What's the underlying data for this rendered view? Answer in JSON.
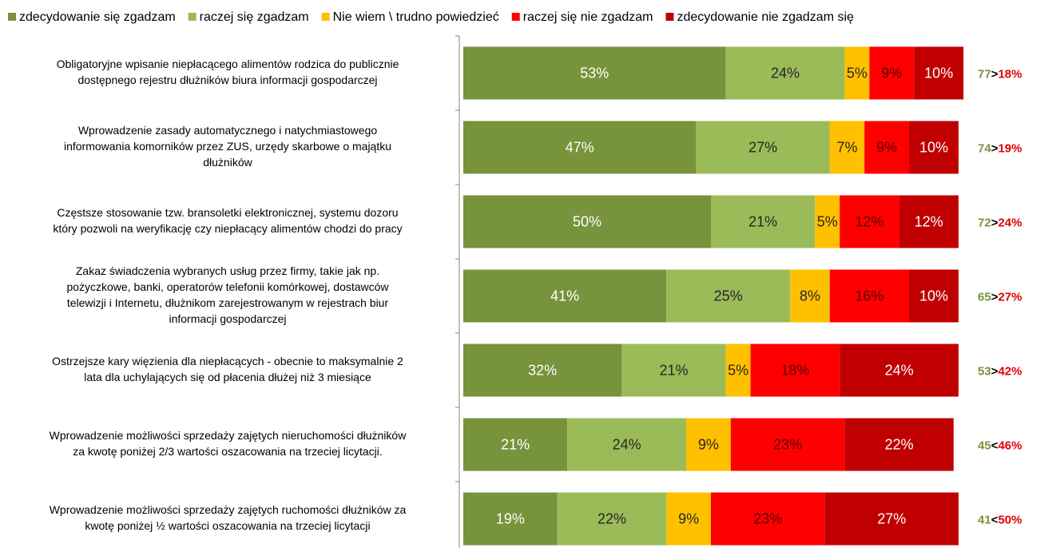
{
  "chart_data": {
    "type": "stacked_bar_horizontal",
    "categories": [
      [
        "Obligatoryjne wpisanie niepłacącego alimentów rodzica do publicznie",
        "dostępnego rejestru dłużników biura informacji gospodarczej"
      ],
      [
        "Wprowadzenie zasady automatycznego i natychmiastowego",
        "informowania komorników przez ZUS, urzędy skarbowe o majątku",
        "dłużników"
      ],
      [
        "Częstsze stosowanie tzw. bransoletki elektronicznej, systemu dozoru",
        "który pozwoli na weryfikację czy niepłacący alimentów chodzi do pracy"
      ],
      [
        "Zakaz świadczenia wybranych usług przez firmy, takie jak np.",
        "pożyczkowe, banki, operatorów telefonii komórkowej, dostawców",
        "telewizji i Internetu, dłużnikom zarejestrowanym w rejestrach biur",
        "informacji gospodarczej"
      ],
      [
        "Ostrzejsze kary  więzienia dla niepłacących - obecnie to maksymalnie 2",
        "lata dla uchylających się od płacenia dłużej niż 3 miesiące"
      ],
      [
        "Wprowadzenie możliwości sprzedaży zajętych nieruchomości dłużników",
        "za kwotę poniżej 2/3 wartości oszacowania na trzeciej licytacji."
      ],
      [
        "Wprowadzenie możliwości sprzedaży zajętych ruchomości dłużników za",
        "kwotę poniżej ½ wartości oszacowania na trzeciej licytacji"
      ]
    ],
    "series": [
      {
        "name": "zdecydowanie się zgadzam",
        "color": "#77933c",
        "label_color": "#ffffff",
        "values": [
          53,
          47,
          50,
          41,
          32,
          21,
          19
        ],
        "value_labels": [
          "53%",
          "47%",
          "50%",
          "41%",
          "32%",
          "21%",
          "19%"
        ]
      },
      {
        "name": "raczej się zgadzam",
        "color": "#9bbb59",
        "label_color": "#262626",
        "values": [
          24,
          27,
          21,
          25,
          21,
          24,
          22
        ],
        "value_labels": [
          "24%",
          "27%",
          "21%",
          "25%",
          "21%",
          "24%",
          "22%"
        ]
      },
      {
        "name": "Nie wiem \\ trudno powiedzieć",
        "color": "#ffc000",
        "label_color": "#262626",
        "values": [
          5,
          7,
          5,
          8,
          5,
          9,
          9
        ],
        "value_labels": [
          "5%",
          "7%",
          "5%",
          "8%",
          "5%",
          "9%",
          "9%"
        ]
      },
      {
        "name": "raczej się nie zgadzam",
        "color": "#ff0000",
        "label_color": "#5a0000",
        "values": [
          9,
          9,
          12,
          16,
          18,
          23,
          23
        ],
        "value_labels": [
          "9%",
          "9%",
          "12%",
          "16%",
          "18%",
          "23%",
          "23%"
        ]
      },
      {
        "name": "zdecydowanie nie zgadzam się",
        "color": "#c00000",
        "label_color": "#ffffff",
        "values": [
          10,
          10,
          12,
          10,
          24,
          22,
          27
        ],
        "value_labels": [
          "10%",
          "10%",
          "12%",
          "10%",
          "24%",
          "22%",
          "27%"
        ]
      }
    ],
    "xlim": [
      0,
      100
    ],
    "annotations": [
      {
        "agree": "77",
        "sign": ">",
        "disagree": "18%"
      },
      {
        "agree": "74",
        "sign": ">",
        "disagree": "19%"
      },
      {
        "agree": "72",
        "sign": ">",
        "disagree": "24%"
      },
      {
        "agree": "65",
        "sign": ">",
        "disagree": "27%"
      },
      {
        "agree": "53",
        "sign": ">",
        "disagree": "42%"
      },
      {
        "agree": "45",
        "sign": "<",
        "disagree": "46%"
      },
      {
        "agree": "41",
        "sign": "<",
        "disagree": "50%"
      }
    ],
    "annotation_colors": {
      "agree": "#77933c",
      "sign": "#000000",
      "disagree": "#e00000"
    },
    "legend": "top"
  }
}
